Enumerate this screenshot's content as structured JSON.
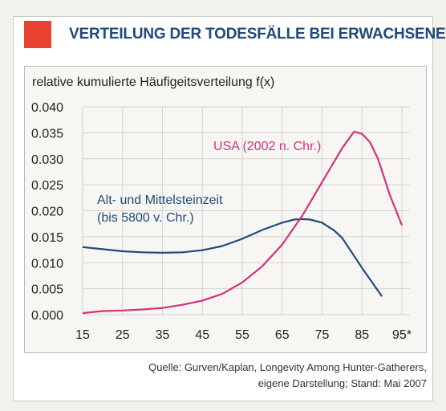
{
  "title": "VERTEILUNG DER TODESFÄLLE BEI ERWACHSENEN",
  "source_line1": "Quelle: Gurven/Kaplan, Longevity Among Hunter-Gatherers,",
  "source_line2": "eigene Darstellung; Stand: Mai 2007",
  "colors": {
    "accent_square": "#e8412f",
    "title": "#1f4a7a",
    "usa": "#d2337a",
    "stone_age": "#1f4a7a"
  },
  "chart_data": {
    "type": "line",
    "ylabel": "relative kumulierte Häufigeitsverteilung f(x)",
    "xlabel": "",
    "xlim": [
      15,
      97
    ],
    "ylim": [
      0,
      0.04
    ],
    "x_ticks": [
      "15",
      "25",
      "35",
      "45",
      "55",
      "65",
      "75",
      "85",
      "95*"
    ],
    "y_ticks": [
      "0.000",
      "0.005",
      "0.010",
      "0.015",
      "0.020",
      "0.025",
      "0.030",
      "0.035",
      "0.040"
    ],
    "grid": true,
    "series": [
      {
        "name": "Alt- und Mittelsteinzeit (bis 5800 v. Chr.)",
        "label_line1": "Alt- und Mittelsteinzeit",
        "label_line2": "(bis 5800 v. Chr.)",
        "x": [
          15,
          20,
          25,
          30,
          35,
          40,
          45,
          50,
          55,
          60,
          65,
          68,
          70,
          72,
          75,
          78,
          80,
          85,
          90
        ],
        "y": [
          0.013,
          0.0126,
          0.0122,
          0.012,
          0.0119,
          0.012,
          0.0124,
          0.0132,
          0.0146,
          0.0163,
          0.0177,
          0.0183,
          0.0184,
          0.0183,
          0.0177,
          0.0162,
          0.0148,
          0.009,
          0.0035
        ]
      },
      {
        "name": "USA (2002 n. Chr.)",
        "label_line1": "USA (2002 n. Chr.)",
        "x": [
          15,
          20,
          25,
          30,
          35,
          40,
          45,
          50,
          55,
          60,
          65,
          70,
          75,
          80,
          83,
          85,
          87,
          89,
          92,
          95
        ],
        "y": [
          0.0003,
          0.0007,
          0.0008,
          0.001,
          0.0013,
          0.0019,
          0.0027,
          0.004,
          0.0062,
          0.0093,
          0.0135,
          0.019,
          0.0255,
          0.032,
          0.0352,
          0.0348,
          0.0332,
          0.03,
          0.023,
          0.0172
        ]
      }
    ]
  }
}
